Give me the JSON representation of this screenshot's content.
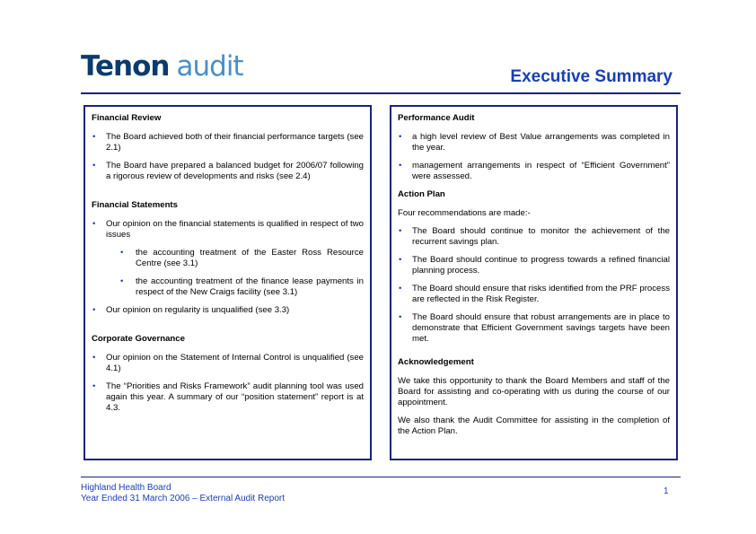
{
  "logo": {
    "part1": "Tenon",
    "part2": "audit"
  },
  "title": "Executive Summary",
  "left": {
    "sections": [
      {
        "heading": "Financial Review",
        "bullets": [
          {
            "text": "The Board achieved both of their financial performance targets (see 2.1)"
          },
          {
            "text": "The Board have prepared a balanced budget for 2006/07 following a rigorous review of developments and risks (see 2.4)"
          }
        ]
      },
      {
        "heading": "Financial Statements",
        "bullets": [
          {
            "text": "Our opinion on the financial statements is qualified in respect of two issues",
            "sub": [
              "the accounting treatment of the Easter Ross Resource Centre (see 3.1)",
              "the accounting treatment of the finance lease payments in respect of the New Craigs facility (see 3.1)"
            ]
          },
          {
            "text": "Our opinion on regularity is unqualified (see 3.3)"
          }
        ]
      },
      {
        "heading": "Corporate Governance",
        "bullets": [
          {
            "text": "Our opinion on the Statement of Internal Control is unqualified (see 4.1)"
          },
          {
            "text": "The “Priorities and Risks Framework” audit planning tool was used again this year.  A summary of our “position statement” report is at 4.3."
          }
        ]
      }
    ]
  },
  "right": {
    "sections": [
      {
        "heading": "Performance Audit",
        "bullets": [
          {
            "text": "a high level review of Best Value arrangements was completed in the year."
          },
          {
            "text": "management arrangements in respect of “Efficient Government” were assessed."
          }
        ]
      },
      {
        "heading": "Action Plan",
        "paragraphs": [
          "Four recommendations are made:-"
        ],
        "bullets": [
          {
            "text": "The Board should continue to monitor the achievement of the recurrent savings plan."
          },
          {
            "text": "The Board should continue to progress towards a refined financial planning process."
          },
          {
            "text": "The Board should ensure that risks identified from the PRF process are reflected in the Risk Register."
          },
          {
            "text": "The Board should ensure that robust arrangements are in place to demonstrate that Efficient Government savings targets have been met."
          }
        ]
      },
      {
        "heading": "Acknowledgement",
        "paragraphs": [
          "We take this opportunity to thank the Board Members and staff of the Board for assisting and co-operating with us during the course of our appointment.",
          "We also thank the Audit Committee for assisting in the completion of the Action Plan."
        ]
      }
    ]
  },
  "footer": {
    "line1": "Highland Health Board",
    "line2": "Year Ended 31 March 2006 – External Audit Report",
    "page": "1"
  }
}
